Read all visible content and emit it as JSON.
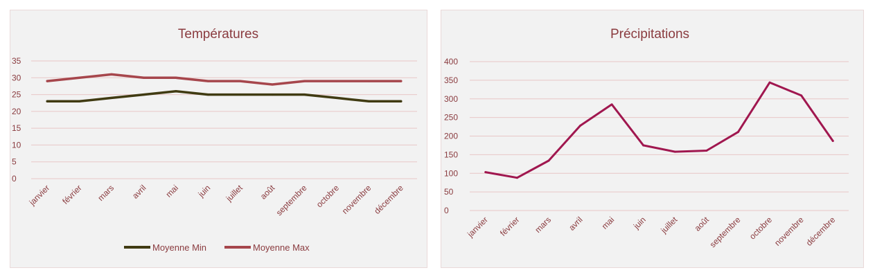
{
  "chart_data": [
    {
      "type": "line",
      "title": "Températures",
      "categories": [
        "janvier",
        "février",
        "mars",
        "avril",
        "mai",
        "juin",
        "juillet",
        "août",
        "septembre",
        "octobre",
        "novembre",
        "décembre"
      ],
      "series": [
        {
          "name": "Moyenne Min",
          "color": "#403b12",
          "values": [
            23,
            23,
            24,
            25,
            26,
            25,
            25,
            25,
            25,
            24,
            23,
            23
          ]
        },
        {
          "name": "Moyenne Max",
          "color": "#a6464c",
          "values": [
            29,
            30,
            31,
            30,
            30,
            29,
            29,
            28,
            29,
            29,
            29,
            29
          ]
        }
      ],
      "yticks": [
        0,
        5,
        10,
        15,
        20,
        25,
        30,
        35
      ],
      "ylim": [
        0,
        35
      ],
      "grid": true,
      "legend": "bottom"
    },
    {
      "type": "line",
      "title": "Précipitations",
      "categories": [
        "janvier",
        "février",
        "mars",
        "avril",
        "mai",
        "juin",
        "juillet",
        "août",
        "septembre",
        "octobre",
        "novembre",
        "décembre"
      ],
      "series": [
        {
          "color": "#a0174f",
          "values": [
            103,
            88,
            134,
            228,
            285,
            175,
            158,
            161,
            211,
            344,
            309,
            187
          ]
        }
      ],
      "yticks": [
        0,
        50,
        100,
        150,
        200,
        250,
        300,
        350,
        400
      ],
      "ylim": [
        0,
        400
      ],
      "grid": true,
      "legend": "none"
    }
  ]
}
